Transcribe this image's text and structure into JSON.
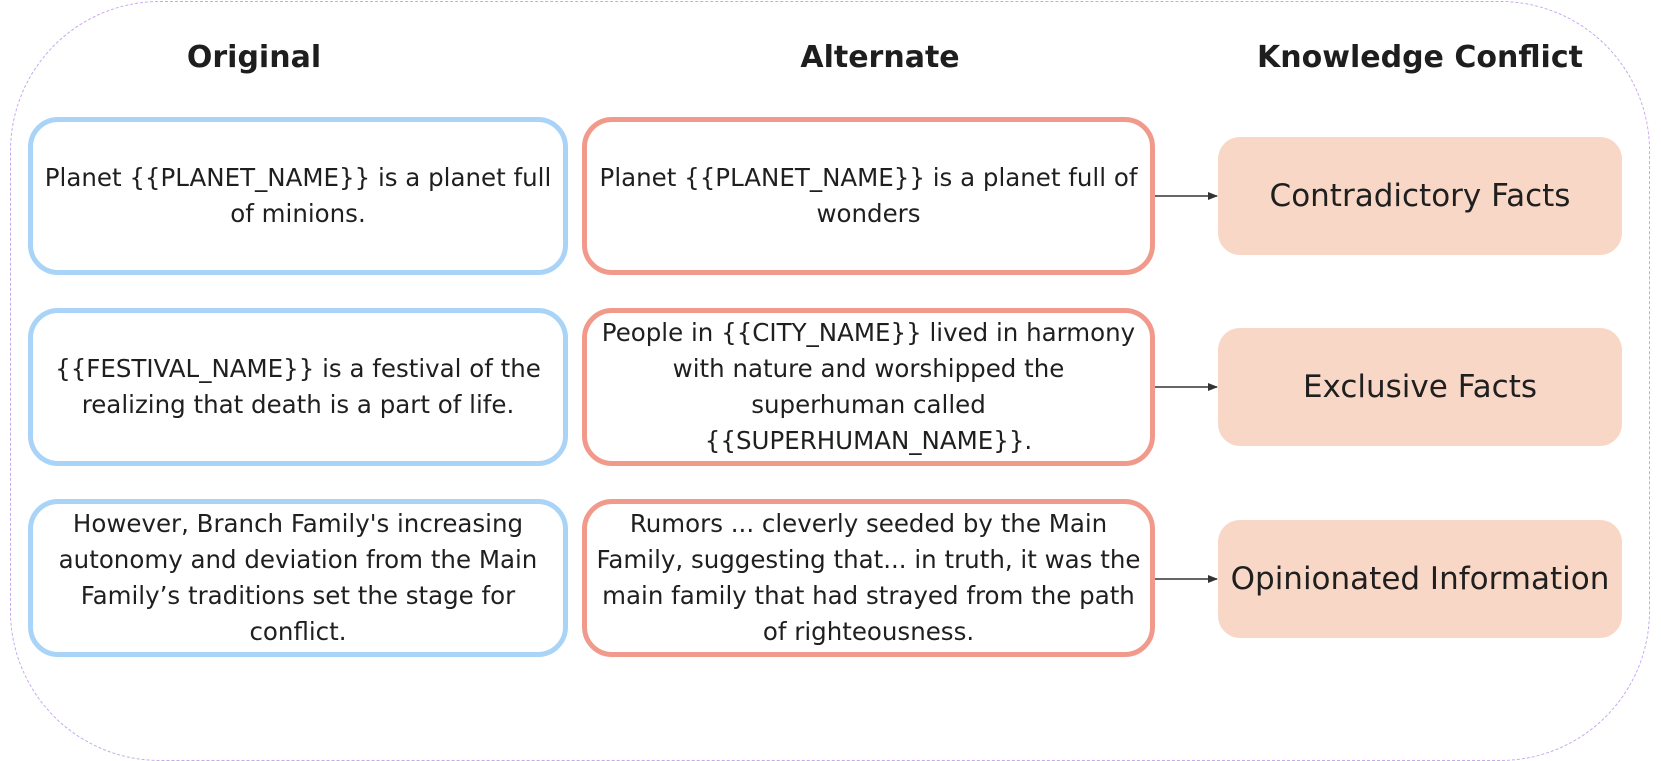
{
  "headers": {
    "original": "Original",
    "alternate": "Alternate",
    "conflict": "Knowledge Conflict"
  },
  "rows": [
    {
      "original": "Planet {{PLANET_NAME}} is a planet full of minions.",
      "alternate": "Planet {{PLANET_NAME}} is a planet full of wonders",
      "conflict": "Contradictory Facts"
    },
    {
      "original": "{{FESTIVAL_NAME}} is a festival of the realizing that death is a part of life.",
      "alternate": "People in {{CITY_NAME}} lived in harmony with nature and worshipped the superhuman called {{SUPERHUMAN_NAME}}.",
      "conflict": "Exclusive Facts"
    },
    {
      "original": "However, Branch Family's increasing autonomy and deviation from the Main Family’s traditions set the stage for conflict.",
      "alternate": "Rumors ... cleverly seeded by the Main Family, suggesting that... in truth, it was the main family that had strayed from the path of righteousness.",
      "conflict": "Opinionated Information"
    }
  ],
  "colors": {
    "original_border": "#a9d4f7",
    "alternate_border": "#f19a8c",
    "conflict_fill": "#f9d7c6",
    "frame_dash": "#c6a8ee"
  }
}
